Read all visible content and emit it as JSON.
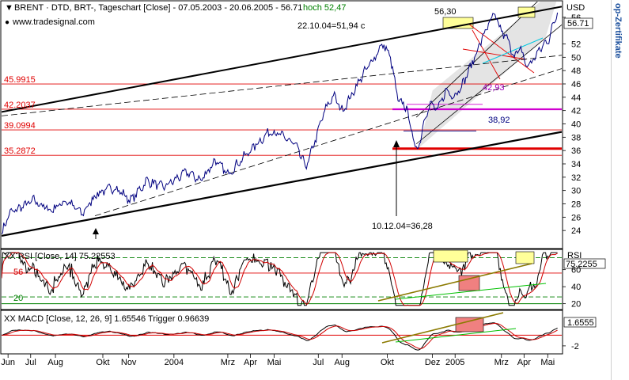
{
  "colors": {
    "price": "#000080",
    "red": "#e00000",
    "magenta": "#d000d0",
    "cyan": "#00c8e0",
    "green": "#00c000",
    "olive": "#8b7a00",
    "highlight": "#ffff99",
    "pinkbox": "#f08080"
  },
  "main": {
    "title": "BRENT · DTD, BRT-, Tageschart [Close] - 07.05.2003 - 20.06.2005 - 56.71",
    "hoch_label": "hoch 52,47",
    "source": "www.tradesignal.com",
    "currency": "USD",
    "last_value": "56.71",
    "ylim": [
      22,
      58
    ],
    "y_ticks": [
      24,
      26,
      28,
      30,
      32,
      34,
      36,
      38,
      40,
      42,
      44,
      46,
      48,
      50,
      52,
      56
    ],
    "h_levels": [
      {
        "value": 45.9915,
        "label": "45.9915"
      },
      {
        "value": 42.2037,
        "label": "42.2037"
      },
      {
        "value": 39.0994,
        "label": "39.0994"
      },
      {
        "value": 35.2872,
        "label": "35.2872"
      }
    ],
    "annotations": {
      "high_oct": "22.10.04=51,94 c",
      "low_dec": "10.12.04=36,28",
      "peak_mar": "56,30",
      "fib_4293": "42,93",
      "fib_3892": "38,92"
    }
  },
  "rsi": {
    "title": "XX RSI [Close, 14] 75.22553",
    "short_label": "RSI",
    "last_value": "75.2255",
    "ylim": [
      15,
      82
    ],
    "y_ticks": [
      20,
      40,
      60
    ],
    "level_labels": [
      "56",
      "20"
    ]
  },
  "macd": {
    "title": "XX MACD [Close, 12, 26, 9] 1.65546 Trigger 0.96639",
    "last_value": "1.6555",
    "ylim": [
      -3.2,
      4.2
    ],
    "y_ticks": [
      -2
    ]
  },
  "x_axis": {
    "labels": [
      "Jun",
      "Jul",
      "Aug",
      "Okt",
      "Nov",
      "2004",
      "Mrz",
      "Apr",
      "Mai",
      "Jul",
      "Aug",
      "Okt",
      "Dez",
      "2005",
      "Mrz",
      "Apr",
      "Mai"
    ],
    "label_idx": [
      6,
      27,
      50,
      94,
      118,
      160,
      210,
      231,
      253,
      294,
      316,
      358,
      400,
      421,
      464,
      485,
      507
    ]
  },
  "side_banner": "op-Zertifikate",
  "chart_data": {
    "type": "line",
    "title": "BRENT · DTD, BRT-, Tageschart [Close] - 07.05.2003 - 20.06.2005 - 56.71",
    "xlabel": "",
    "ylabel": "USD",
    "x_range": [
      "07.05.2003",
      "20.06.2005"
    ],
    "ylim": [
      22,
      58
    ],
    "anchors": [
      [
        0,
        23.5
      ],
      [
        7,
        26.5
      ],
      [
        18,
        27.5
      ],
      [
        30,
        28.5
      ],
      [
        45,
        27.0
      ],
      [
        60,
        28.5
      ],
      [
        75,
        26.5
      ],
      [
        88,
        29.5
      ],
      [
        105,
        30.5
      ],
      [
        120,
        28.5
      ],
      [
        135,
        31.5
      ],
      [
        150,
        30.5
      ],
      [
        160,
        31.5
      ],
      [
        172,
        32.8
      ],
      [
        185,
        31.5
      ],
      [
        198,
        34.5
      ],
      [
        210,
        32.5
      ],
      [
        225,
        35.0
      ],
      [
        238,
        37.2
      ],
      [
        250,
        39.0
      ],
      [
        262,
        38.0
      ],
      [
        272,
        37.0
      ],
      [
        283,
        33.5
      ],
      [
        292,
        38.0
      ],
      [
        300,
        42.0
      ],
      [
        308,
        44.3
      ],
      [
        316,
        42.0
      ],
      [
        324,
        44.0
      ],
      [
        332,
        46.5
      ],
      [
        340,
        48.5
      ],
      [
        348,
        50.5
      ],
      [
        354,
        52.0
      ],
      [
        361,
        50.0
      ],
      [
        368,
        43.5
      ],
      [
        376,
        42.5
      ],
      [
        383,
        37.0
      ],
      [
        387,
        36.3
      ],
      [
        392,
        40.5
      ],
      [
        398,
        43.0
      ],
      [
        405,
        42.0
      ],
      [
        412,
        45.0
      ],
      [
        420,
        44.2
      ],
      [
        428,
        46.0
      ],
      [
        436,
        48.8
      ],
      [
        444,
        52.0
      ],
      [
        452,
        55.0
      ],
      [
        458,
        56.3
      ],
      [
        462,
        54.5
      ],
      [
        470,
        52.5
      ],
      [
        476,
        50.2
      ],
      [
        482,
        51.2
      ],
      [
        488,
        48.5
      ],
      [
        495,
        50.0
      ],
      [
        500,
        51.2
      ],
      [
        508,
        52.8
      ],
      [
        516,
        56.7
      ]
    ]
  }
}
